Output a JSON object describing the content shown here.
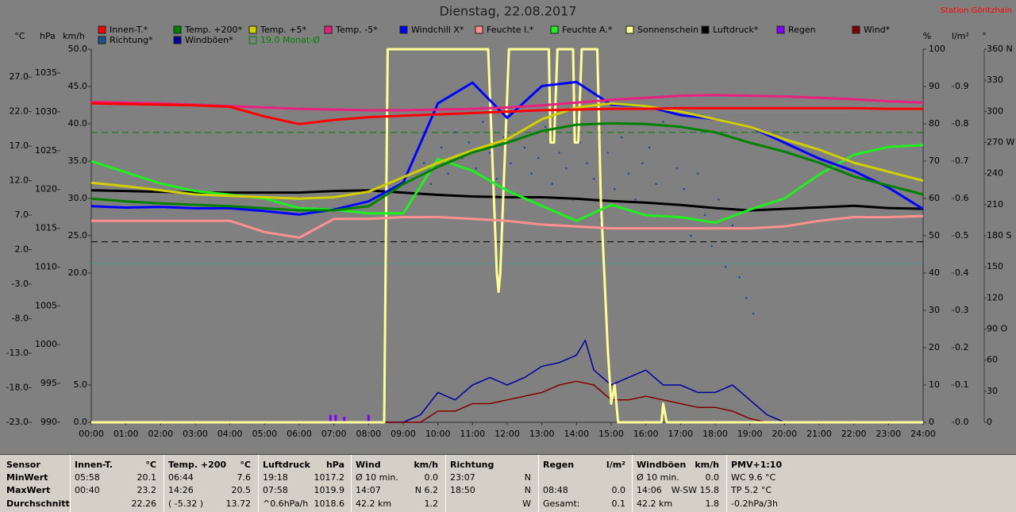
{
  "chart_data": {
    "type": "line",
    "title": "Dienstag, 22.08.2017",
    "station": "Station Göritzhain",
    "x": [
      0,
      1,
      2,
      3,
      4,
      5,
      6,
      7,
      8,
      9,
      10,
      11,
      12,
      13,
      14,
      15,
      16,
      17,
      18,
      19,
      20,
      21,
      22,
      23,
      24
    ],
    "xlim": [
      0,
      24
    ],
    "xticks": [
      {
        "value": 0,
        "label": "00:00"
      },
      {
        "value": 1,
        "label": "01:00"
      },
      {
        "value": 2,
        "label": "02:00"
      },
      {
        "value": 3,
        "label": "03:00"
      },
      {
        "value": 4,
        "label": "04:00"
      },
      {
        "value": 5,
        "label": "05:00"
      },
      {
        "value": 6,
        "label": "06:00"
      },
      {
        "value": 7,
        "label": "07:00"
      },
      {
        "value": 8,
        "label": "08:00"
      },
      {
        "value": 9,
        "label": "09:00"
      },
      {
        "value": 10,
        "label": "10:00"
      },
      {
        "value": 11,
        "label": "11:00"
      },
      {
        "value": 12,
        "label": "12:00"
      },
      {
        "value": 13,
        "label": "13:00"
      },
      {
        "value": 14,
        "label": "14:00"
      },
      {
        "value": 15,
        "label": "15:00"
      },
      {
        "value": 16,
        "label": "16:00"
      },
      {
        "value": 17,
        "label": "17:00"
      },
      {
        "value": 18,
        "label": "18:00"
      },
      {
        "value": 19,
        "label": "19:00"
      },
      {
        "value": 20,
        "label": "20:00"
      },
      {
        "value": 21,
        "label": "21:00"
      },
      {
        "value": 22,
        "label": "22:00"
      },
      {
        "value": 23,
        "label": "23:00"
      },
      {
        "value": 24,
        "label": "24:00"
      }
    ],
    "axes": [
      {
        "title": "°C",
        "lim": [
          -23,
          31.04
        ],
        "ticks": [
          {
            "value": -23,
            "label": "-23.0"
          },
          {
            "value": -18,
            "label": "-18.0"
          },
          {
            "value": -13,
            "label": "-13.0"
          },
          {
            "value": -8,
            "label": "-8.0"
          },
          {
            "value": -3,
            "label": "-3.0"
          },
          {
            "value": 2,
            "label": "2.0"
          },
          {
            "value": 7,
            "label": "7.0"
          },
          {
            "value": 12,
            "label": "12.0"
          },
          {
            "value": 17,
            "label": "17.0"
          },
          {
            "value": 22,
            "label": "22.0"
          },
          {
            "value": 27,
            "label": "27.0"
          }
        ]
      },
      {
        "title": "hPa",
        "lim": [
          990,
          1038.07
        ],
        "ticks": [
          990,
          995,
          1000,
          1005,
          1010,
          1015,
          1020,
          1025,
          1030,
          1035
        ]
      },
      {
        "title": "km/h",
        "lim": [
          0,
          50
        ],
        "ticks": [
          {
            "value": 0,
            "label": "0.0"
          },
          {
            "value": 5,
            "label": "5.0"
          },
          {
            "value": 20,
            "label": "20.0"
          },
          {
            "value": 25,
            "label": "25.0"
          },
          {
            "value": 30,
            "label": "30.0"
          },
          {
            "value": 35,
            "label": "35.0"
          },
          {
            "value": 40,
            "label": "40.0"
          },
          {
            "value": 45,
            "label": "45.0"
          },
          {
            "value": 50,
            "label": "50.0"
          }
        ]
      },
      {
        "title": "%",
        "lim": [
          0,
          100
        ],
        "ticks": [
          0,
          10,
          20,
          30,
          40,
          50,
          60,
          70,
          80,
          90,
          100
        ]
      },
      {
        "title": "l/m²",
        "lim": [
          0,
          1
        ],
        "ticks": [
          {
            "value": 0,
            "label": "0.0"
          },
          {
            "value": 0.1,
            "label": "0.1"
          },
          {
            "value": 0.2,
            "label": "0.2"
          },
          {
            "value": 0.3,
            "label": "0.3"
          },
          {
            "value": 0.4,
            "label": "0.4"
          },
          {
            "value": 0.5,
            "label": "0.5"
          },
          {
            "value": 0.6,
            "label": "0.6"
          },
          {
            "value": 0.7,
            "label": "0.7"
          },
          {
            "value": 0.8,
            "label": "0.8"
          },
          {
            "value": 0.9,
            "label": "0.9"
          }
        ]
      },
      {
        "title": "°",
        "lim": [
          0,
          360
        ],
        "ticks": [
          0,
          30,
          60,
          {
            "value": 90,
            "label": "90 O"
          },
          120,
          150,
          {
            "value": 180,
            "label": "180 S"
          },
          210,
          240,
          {
            "value": 270,
            "label": "270 W"
          },
          300,
          330,
          {
            "value": 360,
            "label": "360 N"
          }
        ]
      }
    ],
    "series": [
      {
        "name": "Innen-T.*",
        "color": "#ff0000",
        "axis": 0,
        "kind": "line",
        "values": [
          23.2,
          23.1,
          23.0,
          22.9,
          22.7,
          21.3,
          20.2,
          20.8,
          21.2,
          21.4,
          21.6,
          21.8,
          22.0,
          22.2,
          22.3,
          22.4,
          22.4,
          22.5,
          22.5,
          22.5,
          22.5,
          22.5,
          22.5,
          22.4,
          22.4
        ]
      },
      {
        "name": "Temp. +200*",
        "color": "#008000",
        "axis": 0,
        "kind": "line",
        "values": [
          9.4,
          9.0,
          8.7,
          8.5,
          8.3,
          8.0,
          7.7,
          7.7,
          8.3,
          11.5,
          14.0,
          16.1,
          17.5,
          19.2,
          20.1,
          20.3,
          20.2,
          19.8,
          19.0,
          17.5,
          16.2,
          14.6,
          12.6,
          11.3,
          10.0
        ]
      },
      {
        "name": "Temp. +5*",
        "color": "#d0d000",
        "axis": 0,
        "kind": "line",
        "values": [
          11.7,
          11.2,
          10.6,
          10.0,
          9.8,
          9.6,
          9.4,
          9.6,
          10.4,
          12.5,
          14.6,
          16.4,
          18.0,
          20.9,
          22.6,
          23.2,
          22.8,
          22.0,
          20.9,
          19.8,
          18.0,
          16.5,
          14.6,
          13.3,
          12.0
        ]
      },
      {
        "name": "Temp. -5*",
        "color": "#e8207f",
        "axis": 0,
        "kind": "line",
        "values": [
          23.4,
          23.3,
          23.2,
          23.0,
          22.8,
          22.6,
          22.4,
          22.3,
          22.2,
          22.2,
          22.3,
          22.4,
          22.6,
          22.9,
          23.3,
          23.7,
          24.0,
          24.3,
          24.4,
          24.3,
          24.2,
          24.0,
          23.8,
          23.5,
          23.3
        ]
      },
      {
        "name": "Windchill X*",
        "color": "#0000ff",
        "axis": 0,
        "kind": "line",
        "values": [
          8.3,
          8.1,
          8.2,
          8.0,
          8.0,
          7.6,
          7.1,
          7.8,
          9.0,
          11.7,
          23.2,
          26.2,
          21.1,
          25.7,
          26.3,
          23.0,
          22.8,
          21.5,
          20.9,
          19.8,
          17.5,
          15.2,
          13.4,
          11.0,
          7.9
        ]
      },
      {
        "name": "Feuchte I.*",
        "color": "#ff9090",
        "axis": 3,
        "kind": "line",
        "values": [
          54,
          54,
          54,
          54,
          54,
          51,
          49.5,
          54.5,
          54.5,
          55,
          55,
          54.5,
          54,
          53,
          52.5,
          52,
          52,
          52,
          52,
          52,
          52.5,
          54,
          55,
          55,
          55.3
        ]
      },
      {
        "name": "Feuchte A.*",
        "color": "#20f020",
        "axis": 3,
        "kind": "line",
        "values": [
          70,
          67,
          64,
          62,
          61,
          60,
          57.4,
          57,
          56,
          56,
          70.6,
          67.4,
          62.1,
          58,
          54,
          58.3,
          55.5,
          55,
          53.5,
          57,
          60,
          66.4,
          71.7,
          73.8,
          74.3
        ]
      },
      {
        "name": "Sonnenschein",
        "color": "#ffff99",
        "axis": 3,
        "kind": "line",
        "x": [
          0,
          8.45,
          8.55,
          11.45,
          11.7,
          11.75,
          11.8,
          12.05,
          13.2,
          13.25,
          13.35,
          13.45,
          13.9,
          13.95,
          14.05,
          14.15,
          14.6,
          14.7,
          14.8,
          14.9,
          15.0,
          15.1,
          15.2,
          15.3,
          16.45,
          16.5,
          16.6,
          16.7,
          24
        ],
        "values": [
          0,
          0,
          100,
          100,
          40,
          35,
          40,
          100,
          100,
          75,
          75,
          100,
          100,
          75,
          75,
          100,
          100,
          60,
          40,
          20,
          5,
          10,
          0,
          0,
          0,
          5,
          0,
          0,
          0
        ]
      },
      {
        "name": "Luftdruck*",
        "color": "#000000",
        "axis": 1,
        "kind": "line",
        "values": [
          1019.9,
          1019.8,
          1019.7,
          1019.6,
          1019.6,
          1019.6,
          1019.6,
          1019.8,
          1019.9,
          1019.6,
          1019.3,
          1019.1,
          1019.0,
          1019.0,
          1018.8,
          1018.5,
          1018.3,
          1018.0,
          1017.6,
          1017.3,
          1017.5,
          1017.7,
          1017.9,
          1017.6,
          1017.5
        ]
      },
      {
        "name": "Regen",
        "color": "#8000ff",
        "axis": 4,
        "kind": "bar",
        "x": [
          6.9,
          7.05,
          7.3,
          8.0
        ],
        "values": [
          0.02,
          0.02,
          0.015,
          0.02
        ]
      },
      {
        "name": "Wind*",
        "color": "#800000",
        "axis": 2,
        "kind": "line",
        "x": [
          0,
          9.5,
          10,
          10.5,
          11,
          11.5,
          12,
          12.5,
          13,
          13.5,
          14,
          14.5,
          15,
          15.5,
          16,
          16.5,
          17,
          17.5,
          18,
          18.5,
          19,
          19.5,
          24
        ],
        "values": [
          0,
          0,
          1.5,
          1.5,
          2.5,
          2.5,
          3,
          3.5,
          4,
          5,
          5.5,
          5,
          3,
          3,
          3.5,
          3,
          2.5,
          2,
          2,
          1.5,
          0.5,
          0,
          0
        ]
      },
      {
        "name": "Richtung*",
        "color": "#1f4f8f",
        "axis": 5,
        "kind": "scatter",
        "x": [
          9.6,
          9.8,
          10.1,
          10.3,
          10.5,
          10.7,
          10.9,
          11.1,
          11.3,
          11.5,
          11.7,
          11.9,
          12.1,
          12.3,
          12.5,
          12.7,
          12.9,
          13.1,
          13.3,
          13.5,
          13.7,
          13.9,
          14.1,
          14.3,
          14.5,
          14.7,
          14.9,
          15.1,
          15.3,
          15.5,
          15.7,
          15.9,
          16.1,
          16.3,
          16.5,
          16.7,
          16.9,
          17.1,
          17.3,
          17.5,
          17.7,
          17.9,
          18.1,
          18.3,
          18.5,
          18.7,
          18.9,
          19.1
        ],
        "values": [
          250,
          230,
          265,
          240,
          280,
          255,
          270,
          245,
          290,
          260,
          235,
          275,
          250,
          220,
          265,
          240,
          255,
          285,
          230,
          260,
          245,
          215,
          270,
          250,
          235,
          195,
          260,
          225,
          275,
          240,
          215,
          250,
          265,
          230,
          290,
          210,
          245,
          225,
          180,
          240,
          200,
          170,
          215,
          150,
          190,
          140,
          120,
          105
        ]
      },
      {
        "name": "Windböen*",
        "color": "#0000a0",
        "axis": 2,
        "kind": "line",
        "x": [
          0,
          9,
          9.5,
          10,
          10.5,
          11,
          11.5,
          12,
          12.5,
          13,
          13.5,
          14,
          14.25,
          14.5,
          15,
          15.5,
          16,
          16.5,
          17,
          17.5,
          18,
          18.5,
          19,
          19.5,
          20,
          24
        ],
        "values": [
          0,
          0,
          1,
          4,
          3,
          5,
          6,
          5,
          6,
          7.5,
          8,
          9,
          11,
          7,
          5,
          6,
          7,
          5,
          5,
          4,
          4,
          5,
          3,
          1,
          0,
          0
        ]
      }
    ],
    "month_avg": {
      "label": "19.0 Monat-Ø",
      "value": 19.0,
      "color": "#008000",
      "axis": 0
    },
    "reference_lines": [
      {
        "axis": 1,
        "value": 1013.25,
        "color": "#000000"
      },
      {
        "axis": 0,
        "value": 0,
        "color": "#20b0a0"
      }
    ]
  },
  "table": {
    "columns": [
      {
        "head": {
          "l": "Sensor"
        },
        "rows": [
          {
            "l": "MinWert"
          },
          {
            "l": "MaxWert"
          },
          {
            "l": "Durchschnitt"
          }
        ]
      },
      {
        "head": {
          "l": "Innen-T.",
          "r": "°C"
        },
        "rows": [
          {
            "l": "05:58",
            "r": "20.1"
          },
          {
            "l": "00:40",
            "r": "23.2"
          },
          {
            "r": "22.26"
          }
        ]
      },
      {
        "head": {
          "l": "Temp. +200",
          "r": "°C"
        },
        "rows": [
          {
            "l": "06:44",
            "r": "7.6"
          },
          {
            "l": "14:26",
            "r": "20.5"
          },
          {
            "l": "( -5.32 )",
            "r": "13.72"
          }
        ]
      },
      {
        "head": {
          "l": "Luftdruck",
          "r": "hPa"
        },
        "rows": [
          {
            "l": "19:18",
            "r": "1017.2"
          },
          {
            "l": "07:58",
            "r": "1019.9"
          },
          {
            "l": "^0.6hPa/h",
            "r": "1018.6"
          }
        ]
      },
      {
        "head": {
          "l": "Wind",
          "r": "km/h"
        },
        "rows": [
          {
            "l": "Ø 10 min.",
            "r": "0.0"
          },
          {
            "l": "14:07",
            "r": "N 6.2"
          },
          {
            "l": "42.2 km",
            "r": "1.2"
          }
        ]
      },
      {
        "head": {
          "l": "Richtung"
        },
        "rows": [
          {
            "l": "23:07",
            "r": "N"
          },
          {
            "l": "18:50",
            "r": "N"
          },
          {
            "r": "W"
          }
        ]
      },
      {
        "head": {
          "l": "Regen",
          "r": "l/m²"
        },
        "rows": [
          {},
          {
            "l": "08:48",
            "r": "0.0"
          },
          {
            "l": "Gesamt:",
            "r": "0.1"
          }
        ]
      },
      {
        "head": {
          "l": "Windböen",
          "r": "km/h"
        },
        "rows": [
          {
            "l": "Ø 10 min.",
            "r": "0.0"
          },
          {
            "l": "14:06",
            "r": "W-SW 15.8"
          },
          {
            "l": "42.2 km",
            "r": "1.8"
          }
        ]
      },
      {
        "head": {
          "l": "PMV+1:10"
        },
        "rows": [
          {
            "l": "WC 9.6 °C"
          },
          {
            "l": "TP 5.2 °C"
          },
          {
            "l": "-0.2hPa/3h"
          }
        ]
      }
    ]
  }
}
